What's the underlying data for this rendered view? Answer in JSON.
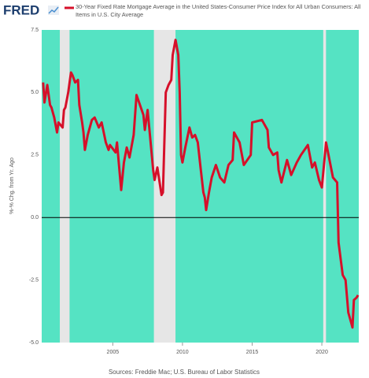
{
  "brand": "FRED",
  "chart_data": {
    "type": "line",
    "ylabel": "%-% Chg. from Yr. Ago",
    "source": "Sources: Freddie Mac; U.S. Bureau of Labor Statistics",
    "xlim": [
      1999.9,
      2022.65
    ],
    "xticks": [
      2005,
      2010,
      2015,
      2020
    ],
    "ylim": [
      -5,
      7.5
    ],
    "yticks": [
      {
        "value": 7.5,
        "label": "7.5"
      },
      {
        "value": 5,
        "label": "5.0"
      },
      {
        "value": 2.5,
        "label": "2.5"
      },
      {
        "value": 0,
        "label": "0.0"
      },
      {
        "value": -2.5,
        "label": "-2.5"
      },
      {
        "value": -5,
        "label": "-5.0"
      }
    ],
    "grid": false,
    "zero_line": true,
    "background": "#55e3c3",
    "recession_color": "#e6e6e6",
    "recessions": [
      [
        2001.2,
        2001.9
      ],
      [
        2007.95,
        2009.5
      ],
      [
        2020.1,
        2020.3
      ]
    ],
    "x": [
      2000.0,
      2000.1,
      2000.3,
      2000.5,
      2000.6,
      2000.8,
      2001.0,
      2001.1,
      2001.4,
      2001.5,
      2001.6,
      2001.8,
      2002.0,
      2002.1,
      2002.3,
      2002.5,
      2002.6,
      2002.8,
      2002.9,
      2003.0,
      2003.2,
      2003.5,
      2003.7,
      2004.0,
      2004.2,
      2004.5,
      2004.7,
      2004.8,
      2005.2,
      2005.3,
      2005.6,
      2005.8,
      2006.0,
      2006.2,
      2006.5,
      2006.7,
      2007.2,
      2007.3,
      2007.5,
      2007.9,
      2008.0,
      2008.2,
      2008.5,
      2008.6,
      2008.8,
      2009.0,
      2009.2,
      2009.3,
      2009.5,
      2009.7,
      2009.8,
      2009.9,
      2010.0,
      2010.2,
      2010.5,
      2010.7,
      2010.9,
      2011.1,
      2011.3,
      2011.5,
      2011.6,
      2011.7,
      2011.9,
      2012.1,
      2012.4,
      2012.7,
      2013.0,
      2013.3,
      2013.6,
      2013.7,
      2014.1,
      2014.4,
      2014.9,
      2015.0,
      2015.7,
      2016.1,
      2016.2,
      2016.5,
      2016.8,
      2016.9,
      2017.1,
      2017.5,
      2017.8,
      2018.2,
      2018.5,
      2019.0,
      2019.3,
      2019.5,
      2019.8,
      2020.0,
      2020.3,
      2020.8,
      2021.1,
      2021.2,
      2021.5,
      2021.7,
      2021.9,
      2022.1,
      2022.2,
      2022.3,
      2022.5,
      2022.6
    ],
    "series": [
      {
        "name": "30-Year Fixed Rate Mortgage Average in the United States-Consumer Price Index for All Urban Consumers: All Items in U.S. City Average",
        "color": "#d6102a",
        "values": [
          5.4,
          4.6,
          5.3,
          4.5,
          4.4,
          4.0,
          3.4,
          3.8,
          3.6,
          4.3,
          4.4,
          5.0,
          5.8,
          5.7,
          5.4,
          5.5,
          4.5,
          3.8,
          3.4,
          2.7,
          3.3,
          3.9,
          4.0,
          3.6,
          3.8,
          3.0,
          2.7,
          2.9,
          2.6,
          3.0,
          1.1,
          2.2,
          2.8,
          2.4,
          3.3,
          4.9,
          4.1,
          3.5,
          4.3,
          1.9,
          1.5,
          2.0,
          0.9,
          1.0,
          5.0,
          5.3,
          5.5,
          6.5,
          7.1,
          6.5,
          5.0,
          2.5,
          2.2,
          2.8,
          3.6,
          3.2,
          3.3,
          3.0,
          2.0,
          1.0,
          0.8,
          0.3,
          1.0,
          1.6,
          2.1,
          1.6,
          1.4,
          2.1,
          2.3,
          3.4,
          3.0,
          2.1,
          2.5,
          3.8,
          3.9,
          3.5,
          2.8,
          2.5,
          2.6,
          1.9,
          1.4,
          2.3,
          1.7,
          2.2,
          2.5,
          2.9,
          2.0,
          2.2,
          1.5,
          1.2,
          3.0,
          1.6,
          1.4,
          -1.0,
          -2.3,
          -2.5,
          -3.8,
          -4.2,
          -4.4,
          -3.3,
          -3.2,
          -3.1
        ]
      }
    ]
  }
}
